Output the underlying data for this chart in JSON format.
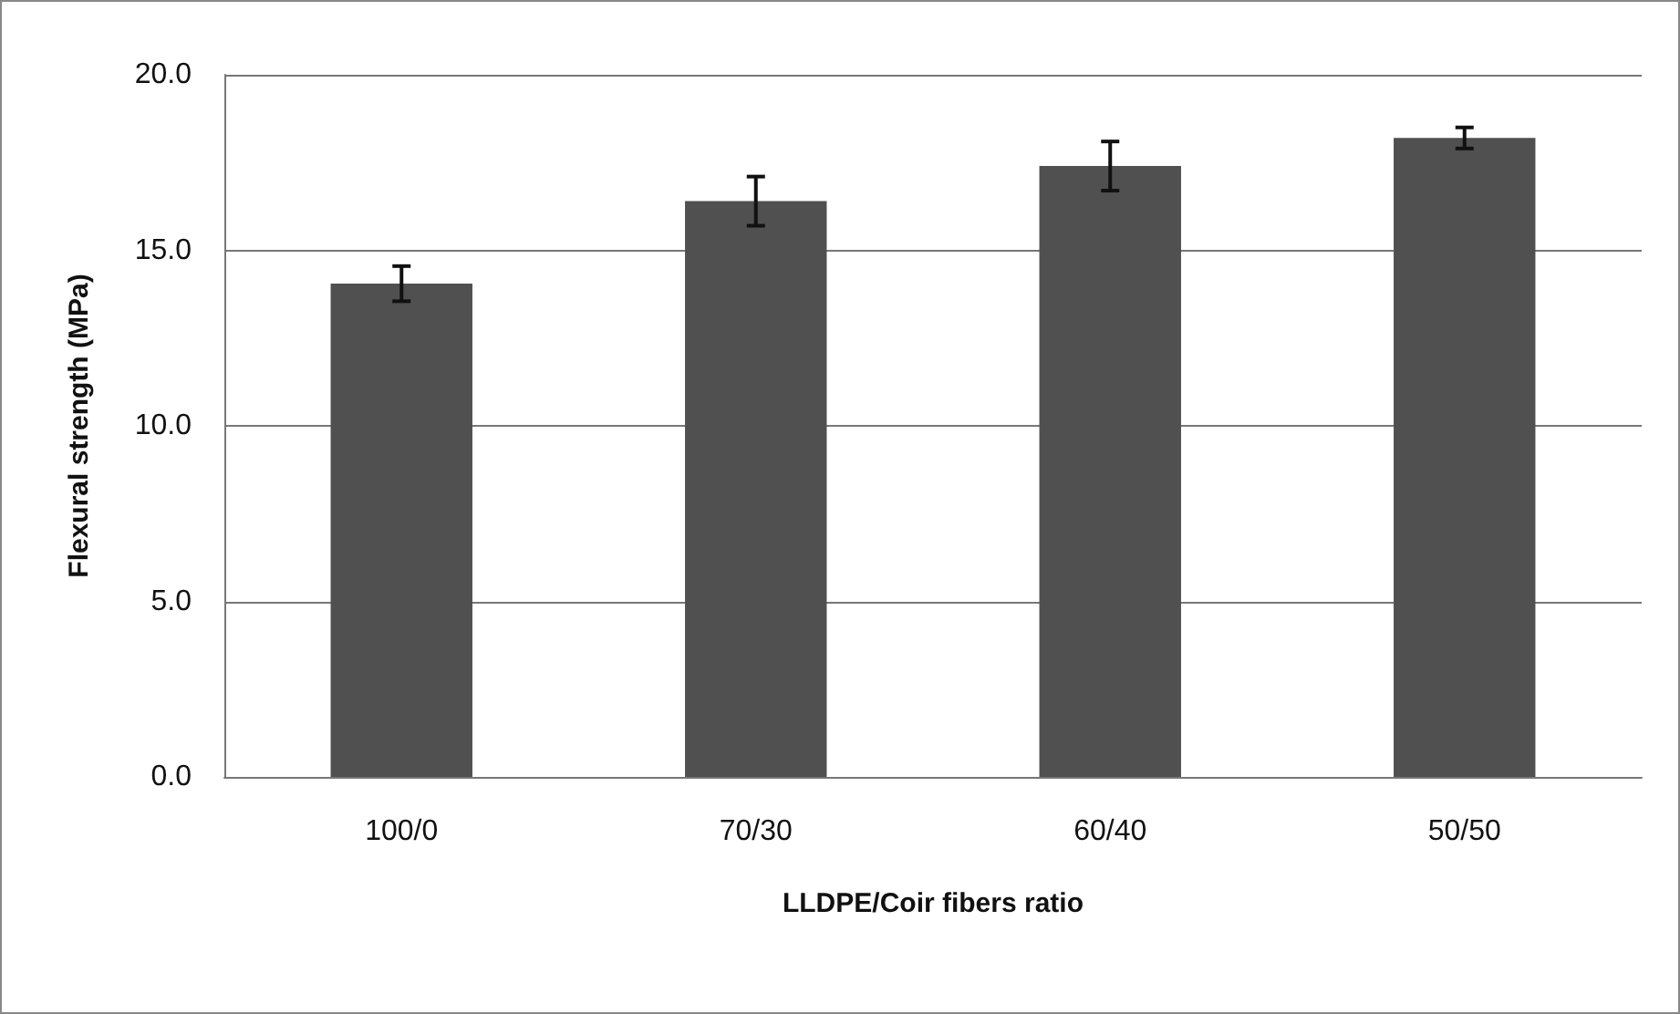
{
  "chart_data": {
    "type": "bar",
    "xlabel": "LLDPE/Coir fibers ratio",
    "ylabel": "Flexural strength (MPa)",
    "categories": [
      "100/0",
      "70/30",
      "60/40",
      "50/50"
    ],
    "values": [
      14.05,
      16.4,
      17.4,
      18.2
    ],
    "errors": [
      0.5,
      0.7,
      0.7,
      0.3
    ],
    "color": "#505050",
    "ylim": [
      0,
      20
    ],
    "yticks": [
      {
        "value": 0,
        "label": "0.0"
      },
      {
        "value": 5,
        "label": "5.0"
      },
      {
        "value": 10,
        "label": "10.0"
      },
      {
        "value": 15,
        "label": "15.0"
      },
      {
        "value": 20,
        "label": "20.0"
      }
    ],
    "grid": "y"
  }
}
